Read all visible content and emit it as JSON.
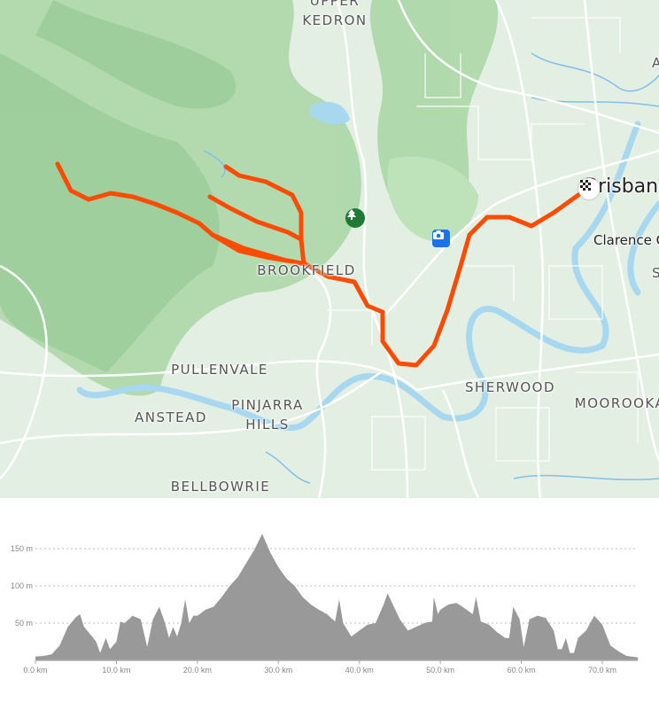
{
  "map": {
    "labels": {
      "upper_kedron_1": "UPPER",
      "upper_kedron_2": "KEDRON",
      "brookfield": "BROOKFIELD",
      "pullenvale": "PULLENVALE",
      "anstead": "ANSTEAD",
      "pinjarra_1": "PINJARRA",
      "pinjarra_2": "HILLS",
      "bellbowrie": "BELLBOWRIE",
      "sherwood": "SHERWOOD",
      "moorooka": "MOOROOKA",
      "brisbane": "Brisbane",
      "clarence": "Clarence C",
      "edge_a": "A",
      "edge_s": "S"
    },
    "icons": [
      "tree-icon",
      "camera-icon",
      "checkered-flag-icon"
    ],
    "colors": {
      "route": "#fc4c02",
      "park": "#a6d8a4",
      "water": "#a8d8f0",
      "tree_poi": "#1f7a33",
      "camera_poi": "#1a73e8"
    }
  },
  "chart_data": {
    "type": "area",
    "title": "",
    "xlabel": "",
    "ylabel": "",
    "xlim": [
      0,
      74.4
    ],
    "ylim": [
      0,
      175
    ],
    "grid": true,
    "x_ticks": [
      "0.0 km",
      "10.0 km",
      "20.0 km",
      "30.0 km",
      "40.0 km",
      "50.0 km",
      "60.0 km",
      "70.0 km"
    ],
    "y_ticks": [
      "50 m",
      "100 m",
      "150 m"
    ],
    "x_tick_values": [
      0,
      10,
      20,
      30,
      40,
      50,
      60,
      70
    ],
    "y_tick_values": [
      50,
      100,
      150
    ],
    "color": "#999999",
    "points": [
      [
        0,
        5
      ],
      [
        1,
        6
      ],
      [
        2,
        8
      ],
      [
        3,
        20
      ],
      [
        4,
        45
      ],
      [
        5,
        58
      ],
      [
        5.5,
        62
      ],
      [
        6,
        45
      ],
      [
        7,
        32
      ],
      [
        7.5,
        25
      ],
      [
        8,
        10
      ],
      [
        8.7,
        30
      ],
      [
        9.2,
        15
      ],
      [
        10,
        25
      ],
      [
        10.5,
        52
      ],
      [
        11,
        50
      ],
      [
        12,
        60
      ],
      [
        13,
        55
      ],
      [
        13.8,
        18
      ],
      [
        14.5,
        55
      ],
      [
        15.3,
        72
      ],
      [
        16,
        50
      ],
      [
        16.5,
        30
      ],
      [
        17,
        45
      ],
      [
        17.5,
        32
      ],
      [
        18,
        50
      ],
      [
        18.5,
        82
      ],
      [
        19,
        50
      ],
      [
        19.5,
        60
      ],
      [
        20,
        60
      ],
      [
        21,
        68
      ],
      [
        22,
        72
      ],
      [
        23,
        85
      ],
      [
        24,
        100
      ],
      [
        25,
        112
      ],
      [
        26,
        130
      ],
      [
        27,
        148
      ],
      [
        28,
        170
      ],
      [
        29,
        145
      ],
      [
        30,
        125
      ],
      [
        31,
        110
      ],
      [
        32,
        100
      ],
      [
        33,
        85
      ],
      [
        34,
        75
      ],
      [
        35,
        68
      ],
      [
        36,
        62
      ],
      [
        37,
        52
      ],
      [
        37.5,
        82
      ],
      [
        38,
        50
      ],
      [
        39,
        32
      ],
      [
        40,
        40
      ],
      [
        41,
        48
      ],
      [
        42,
        50
      ],
      [
        43,
        75
      ],
      [
        43.5,
        90
      ],
      [
        44,
        78
      ],
      [
        45,
        55
      ],
      [
        46,
        40
      ],
      [
        47,
        45
      ],
      [
        48,
        50
      ],
      [
        49,
        52
      ],
      [
        49.2,
        85
      ],
      [
        49.7,
        62
      ],
      [
        50,
        68
      ],
      [
        51,
        75
      ],
      [
        52,
        77
      ],
      [
        53,
        70
      ],
      [
        54,
        62
      ],
      [
        54.4,
        85
      ],
      [
        55,
        52
      ],
      [
        56,
        48
      ],
      [
        57,
        38
      ],
      [
        58,
        30
      ],
      [
        58.5,
        30
      ],
      [
        59,
        72
      ],
      [
        59.8,
        55
      ],
      [
        60.3,
        18
      ],
      [
        61,
        55
      ],
      [
        62,
        60
      ],
      [
        63,
        57
      ],
      [
        64,
        40
      ],
      [
        64.5,
        15
      ],
      [
        65,
        15
      ],
      [
        65.5,
        30
      ],
      [
        66,
        10
      ],
      [
        66.5,
        10
      ],
      [
        67,
        30
      ],
      [
        68,
        40
      ],
      [
        69,
        60
      ],
      [
        70,
        48
      ],
      [
        71,
        20
      ],
      [
        72,
        12
      ],
      [
        73,
        6
      ],
      [
        74.4,
        4
      ]
    ]
  }
}
